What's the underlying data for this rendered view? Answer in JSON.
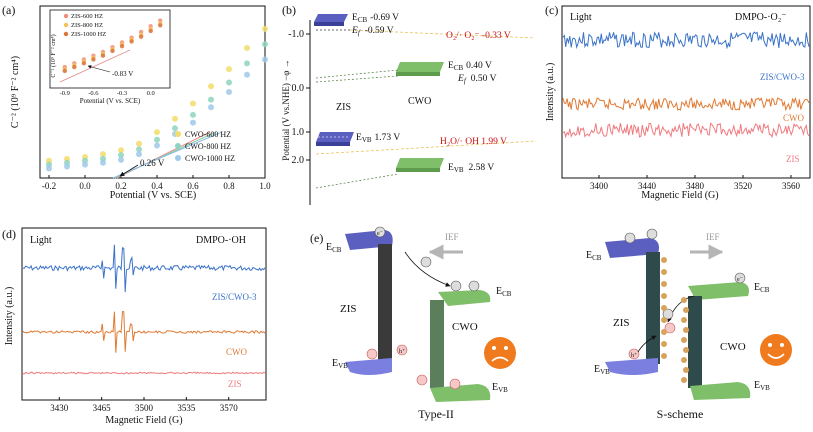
{
  "panel_labels": [
    "(a)",
    "(b)",
    "(c)",
    "(d)",
    "(e)"
  ],
  "colors": {
    "zis600": "#f28c7a",
    "zis800": "#f3c25a",
    "zis1000": "#d9733a",
    "cwo600": "#f2dc6a",
    "cwo800": "#8fd3c0",
    "cwo1000": "#9fc9ea",
    "zis_block": "#5a5fc0",
    "cwo_block": "#7fbf6a",
    "red_text": "#cc1111",
    "esr_zis_cwo": "#3b73c9",
    "esr_cwo": "#e07a33",
    "esr_zis": "#ef7b80",
    "arrow_gray": "#b5b5b5",
    "face": "#f07b1e"
  },
  "chart_data": [
    {
      "id": "a",
      "type": "scatter",
      "title": "",
      "xlabel": "Potential (V vs. SCE)",
      "ylabel": "C⁻² (10⁹ F⁻² cm⁴)",
      "xlim": [
        -0.25,
        1.0
      ],
      "xticks": [
        "-0.2",
        "0.0",
        "0.2",
        "0.4",
        "0.6",
        "0.8",
        "1.0"
      ],
      "legend": [
        "CWO-600 HZ",
        "CWO-800 HZ",
        "CWO-1000 HZ"
      ],
      "legend_position": "bottom-right",
      "annotation": "0.26 V",
      "series": [
        {
          "name": "CWO-600 HZ",
          "x": [
            -0.2,
            -0.1,
            0.0,
            0.1,
            0.2,
            0.3,
            0.4,
            0.5,
            0.6,
            0.7,
            0.8,
            0.9,
            1.0
          ],
          "y": [
            0.9,
            1.0,
            1.1,
            1.25,
            1.45,
            1.8,
            2.4,
            3.1,
            3.9,
            4.8,
            5.7,
            6.8,
            7.8
          ]
        },
        {
          "name": "CWO-800 HZ",
          "x": [
            -0.2,
            -0.1,
            0.0,
            0.1,
            0.2,
            0.3,
            0.4,
            0.5,
            0.6,
            0.7,
            0.8,
            0.9,
            1.0
          ],
          "y": [
            0.7,
            0.8,
            0.9,
            1.0,
            1.2,
            1.5,
            2.0,
            2.6,
            3.3,
            4.1,
            5.0,
            6.0,
            7.0
          ]
        },
        {
          "name": "CWO-1000 HZ",
          "x": [
            -0.2,
            -0.1,
            0.0,
            0.1,
            0.2,
            0.3,
            0.4,
            0.5,
            0.6,
            0.7,
            0.8,
            0.9,
            1.0
          ],
          "y": [
            0.5,
            0.6,
            0.7,
            0.8,
            0.95,
            1.25,
            1.7,
            2.3,
            2.9,
            3.7,
            4.5,
            5.4,
            6.2
          ]
        }
      ],
      "inset": {
        "type": "scatter",
        "xlabel": "Potential (V vs. SCE)",
        "ylabel": "C⁻² (10⁹ F⁻² cm⁴)",
        "xticks": [
          "-0.9",
          "-0.6",
          "-0.3",
          "0.0"
        ],
        "legend": [
          "ZIS-600 HZ",
          "ZIS-800 HZ",
          "ZIS-1000 HZ"
        ],
        "annotation": "-0.83 V",
        "series": [
          {
            "name": "ZIS-600 HZ",
            "x": [
              -0.9,
              -0.8,
              -0.7,
              -0.6,
              -0.5,
              -0.4,
              -0.3,
              -0.2,
              -0.1,
              0.0,
              0.1
            ],
            "y": [
              2.2,
              2.6,
              3.0,
              3.4,
              3.8,
              4.3,
              4.8,
              5.3,
              5.9,
              6.5,
              7.1
            ]
          },
          {
            "name": "ZIS-800 HZ",
            "x": [
              -0.9,
              -0.8,
              -0.7,
              -0.6,
              -0.5,
              -0.4,
              -0.3,
              -0.2,
              -0.1,
              0.0,
              0.1
            ],
            "y": [
              2.0,
              2.4,
              2.8,
              3.2,
              3.6,
              4.1,
              4.6,
              5.1,
              5.6,
              6.2,
              6.8
            ]
          },
          {
            "name": "ZIS-1000 HZ",
            "x": [
              -0.9,
              -0.8,
              -0.7,
              -0.6,
              -0.5,
              -0.4,
              -0.3,
              -0.2,
              -0.1,
              0.0,
              0.1
            ],
            "y": [
              1.8,
              2.2,
              2.6,
              3.0,
              3.4,
              3.9,
              4.4,
              4.9,
              5.4,
              6.0,
              6.6
            ]
          }
        ]
      }
    },
    {
      "id": "b",
      "type": "diagram",
      "ylabel": "Potential (V vs.NHE)  −φ →",
      "yticks": [
        "-1.0",
        "0.0",
        "1.0",
        "2.0"
      ],
      "labels": {
        "zis": "ZIS",
        "cwo": "CWO",
        "zis_ecb": "E",
        "zis_ecb_sub": "CB",
        "zis_ecb_val": "-0.69 V",
        "zis_ef": "E",
        "zis_ef_sub": "f",
        "zis_ef_val": "-0.59 V",
        "o2": "O₂/· O₂⁻  -0.33 V",
        "cwo_ecb": "E",
        "cwo_ecb_sub": "CB",
        "cwo_ecb_val": "0.40 V",
        "cwo_ef": "E",
        "cwo_ef_sub": "f",
        "cwo_ef_val": "0.50 V",
        "zis_evb": "E",
        "zis_evb_sub": "VB",
        "zis_evb_val": "1.73 V",
        "h2o": "H₂O/· OH  1.99 V",
        "cwo_evb": "E",
        "cwo_evb_sub": "VB",
        "cwo_evb_val": "2.58 V"
      }
    },
    {
      "id": "c",
      "type": "line",
      "title": "Light",
      "tag": "DMPO-·O₂⁻",
      "xlabel": "Magnetic Field (G)",
      "ylabel": "Intensity (a.u.)",
      "xlim": [
        3370,
        3575
      ],
      "xticks": [
        "3400",
        "3440",
        "3480",
        "3520",
        "3560"
      ],
      "series_labels": [
        "ZIS/CWO-3",
        "CWO",
        "ZIS"
      ]
    },
    {
      "id": "d",
      "type": "line",
      "title": "Light",
      "tag": "DMPO-·OH",
      "xlabel": "Magnetic Field (G)",
      "ylabel": "Intensity (a.u.)",
      "xlim": [
        3400,
        3600
      ],
      "xticks": [
        "3430",
        "3465",
        "3500",
        "3535",
        "3570"
      ],
      "series_labels": [
        "ZIS/CWO-3",
        "CWO",
        "ZIS"
      ]
    }
  ],
  "schemes": {
    "e_label": "(e)",
    "type2": {
      "title": "Type-II",
      "ief": "IEF",
      "ecb_l": "E",
      "ecb_l_sub": "CB",
      "ecb_r": "E",
      "ecb_r_sub": "CB",
      "evb_l": "E",
      "evb_l_sub": "VB",
      "evb_r": "E",
      "evb_r_sub": "VB",
      "zis": "ZIS",
      "cwo": "CWO",
      "e": "e⁻",
      "h": "h⁺"
    },
    "sscheme": {
      "title": "S-scheme",
      "ief": "IEF",
      "ecb_l": "E",
      "ecb_l_sub": "CB",
      "ecb_r": "E",
      "ecb_r_sub": "CB",
      "evb_l": "E",
      "evb_l_sub": "VB",
      "evb_r": "E",
      "evb_r_sub": "VB",
      "zis": "ZIS",
      "cwo": "CWO",
      "e": "e⁻",
      "h": "h⁺"
    }
  }
}
